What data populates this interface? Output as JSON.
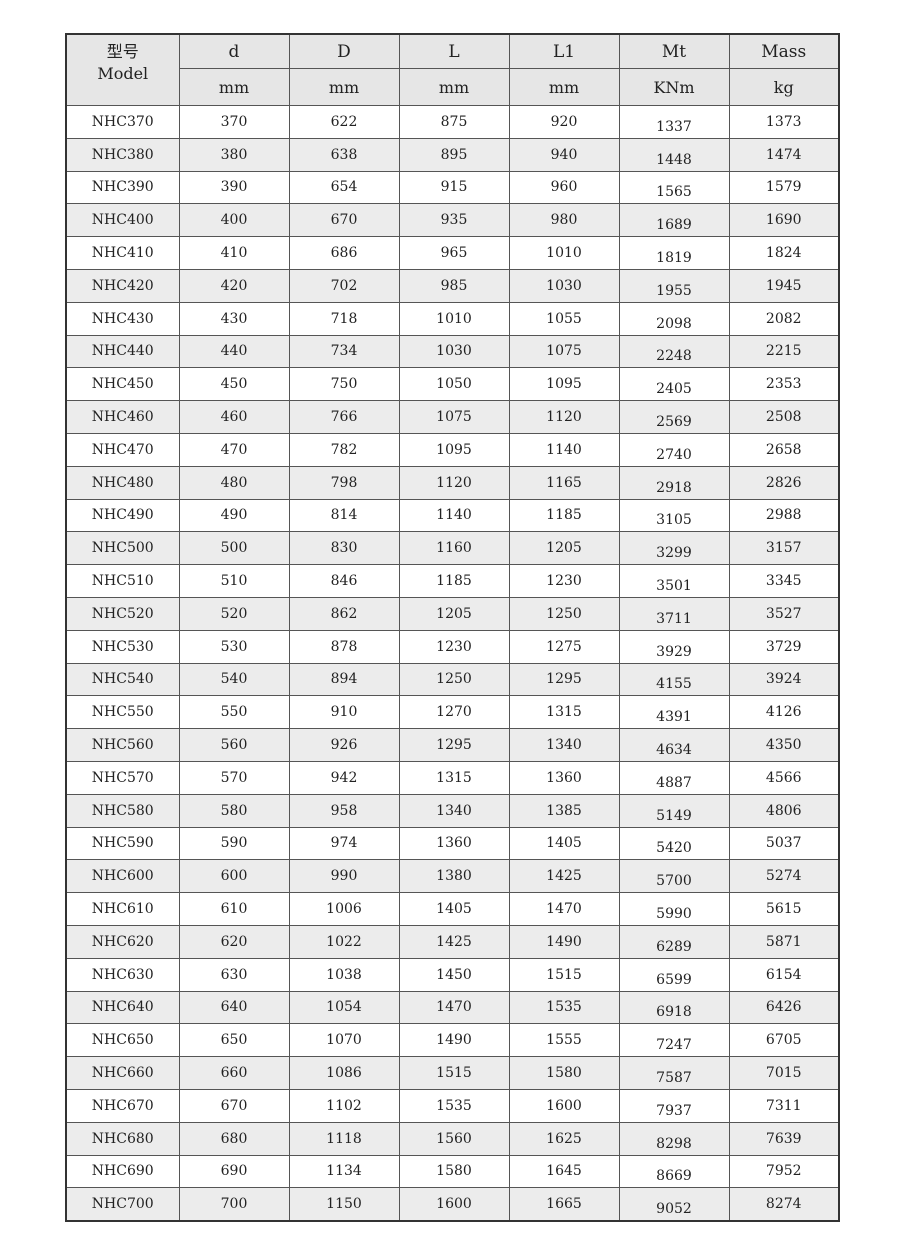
{
  "header": {
    "model_cn": "型号",
    "model_en": "Model",
    "columns": [
      {
        "name": "d",
        "unit": "mm"
      },
      {
        "name": "D",
        "unit": "mm"
      },
      {
        "name": "L",
        "unit": "mm"
      },
      {
        "name": "L1",
        "unit": "mm"
      },
      {
        "name": "Mt",
        "unit": "KNm"
      },
      {
        "name": "Mass",
        "unit": "kg"
      }
    ]
  },
  "rows": [
    [
      "NHC370",
      "370",
      "622",
      "875",
      "920",
      "1337",
      "1373"
    ],
    [
      "NHC380",
      "380",
      "638",
      "895",
      "940",
      "1448",
      "1474"
    ],
    [
      "NHC390",
      "390",
      "654",
      "915",
      "960",
      "1565",
      "1579"
    ],
    [
      "NHC400",
      "400",
      "670",
      "935",
      "980",
      "1689",
      "1690"
    ],
    [
      "NHC410",
      "410",
      "686",
      "965",
      "1010",
      "1819",
      "1824"
    ],
    [
      "NHC420",
      "420",
      "702",
      "985",
      "1030",
      "1955",
      "1945"
    ],
    [
      "NHC430",
      "430",
      "718",
      "1010",
      "1055",
      "2098",
      "2082"
    ],
    [
      "NHC440",
      "440",
      "734",
      "1030",
      "1075",
      "2248",
      "2215"
    ],
    [
      "NHC450",
      "450",
      "750",
      "1050",
      "1095",
      "2405",
      "2353"
    ],
    [
      "NHC460",
      "460",
      "766",
      "1075",
      "1120",
      "2569",
      "2508"
    ],
    [
      "NHC470",
      "470",
      "782",
      "1095",
      "1140",
      "2740",
      "2658"
    ],
    [
      "NHC480",
      "480",
      "798",
      "1120",
      "1165",
      "2918",
      "2826"
    ],
    [
      "NHC490",
      "490",
      "814",
      "1140",
      "1185",
      "3105",
      "2988"
    ],
    [
      "NHC500",
      "500",
      "830",
      "1160",
      "1205",
      "3299",
      "3157"
    ],
    [
      "NHC510",
      "510",
      "846",
      "1185",
      "1230",
      "3501",
      "3345"
    ],
    [
      "NHC520",
      "520",
      "862",
      "1205",
      "1250",
      "3711",
      "3527"
    ],
    [
      "NHC530",
      "530",
      "878",
      "1230",
      "1275",
      "3929",
      "3729"
    ],
    [
      "NHC540",
      "540",
      "894",
      "1250",
      "1295",
      "4155",
      "3924"
    ],
    [
      "NHC550",
      "550",
      "910",
      "1270",
      "1315",
      "4391",
      "4126"
    ],
    [
      "NHC560",
      "560",
      "926",
      "1295",
      "1340",
      "4634",
      "4350"
    ],
    [
      "NHC570",
      "570",
      "942",
      "1315",
      "1360",
      "4887",
      "4566"
    ],
    [
      "NHC580",
      "580",
      "958",
      "1340",
      "1385",
      "5149",
      "4806"
    ],
    [
      "NHC590",
      "590",
      "974",
      "1360",
      "1405",
      "5420",
      "5037"
    ],
    [
      "NHC600",
      "600",
      "990",
      "1380",
      "1425",
      "5700",
      "5274"
    ],
    [
      "NHC610",
      "610",
      "1006",
      "1405",
      "1470",
      "5990",
      "5615"
    ],
    [
      "NHC620",
      "620",
      "1022",
      "1425",
      "1490",
      "6289",
      "5871"
    ],
    [
      "NHC630",
      "630",
      "1038",
      "1450",
      "1515",
      "6599",
      "6154"
    ],
    [
      "NHC640",
      "640",
      "1054",
      "1470",
      "1535",
      "6918",
      "6426"
    ],
    [
      "NHC650",
      "650",
      "1070",
      "1490",
      "1555",
      "7247",
      "6705"
    ],
    [
      "NHC660",
      "660",
      "1086",
      "1515",
      "1580",
      "7587",
      "7015"
    ],
    [
      "NHC670",
      "670",
      "1102",
      "1535",
      "1600",
      "7937",
      "7311"
    ],
    [
      "NHC680",
      "680",
      "1118",
      "1560",
      "1625",
      "8298",
      "7639"
    ],
    [
      "NHC690",
      "690",
      "1134",
      "1580",
      "1645",
      "8669",
      "7952"
    ],
    [
      "NHC700",
      "700",
      "1150",
      "1600",
      "1665",
      "9052",
      "8274"
    ]
  ]
}
